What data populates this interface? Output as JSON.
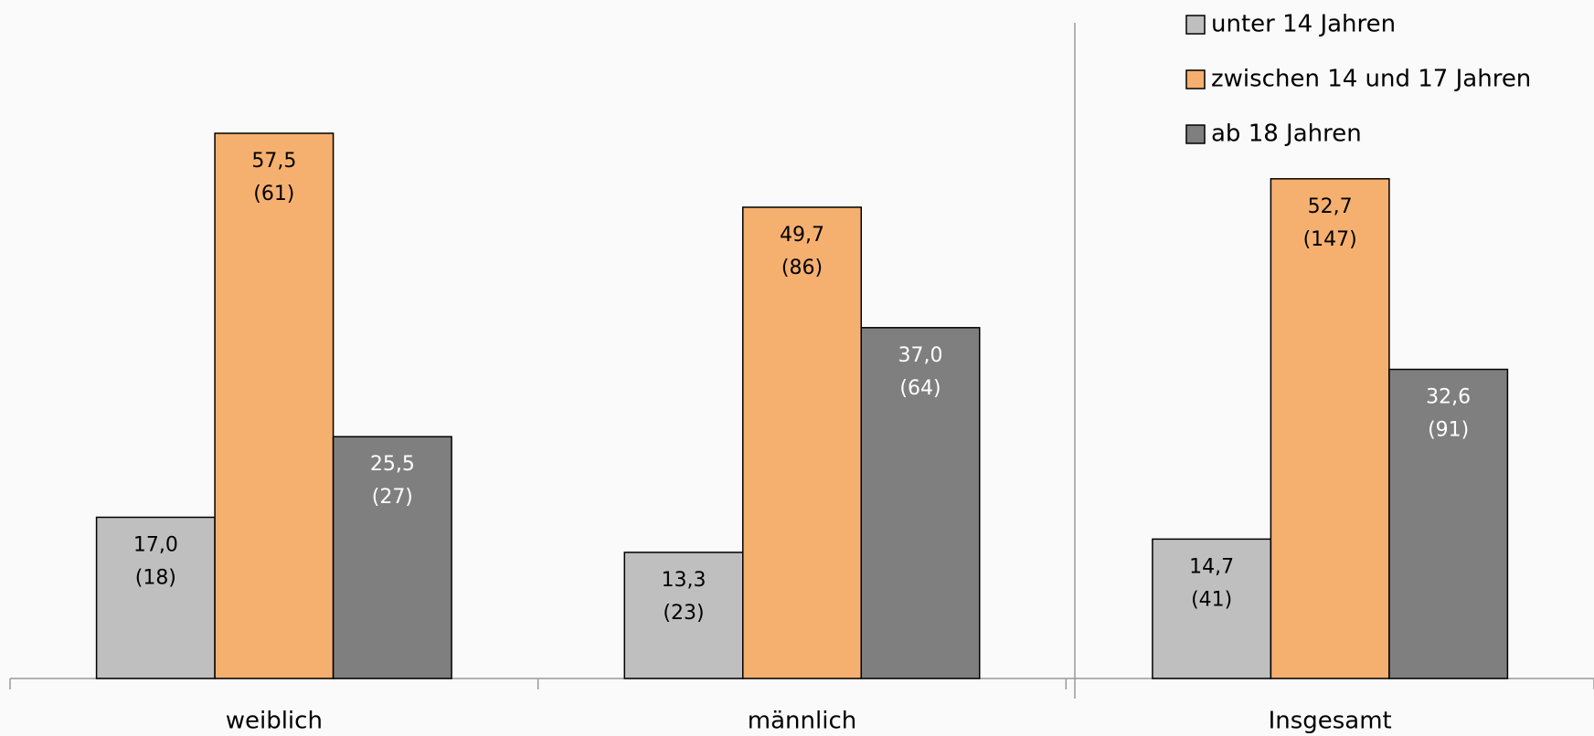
{
  "chart_data": {
    "type": "bar",
    "categories": [
      "weiblich",
      "männlich",
      "Insgesamt"
    ],
    "ylim": [
      0,
      60
    ],
    "legend": "top-right",
    "series": [
      {
        "name": "unter 14 Jahren",
        "color": "#bfbfbf",
        "label_color": "#000000",
        "values": [
          17.0,
          13.3,
          14.7
        ],
        "value_labels": [
          "17,0",
          "13,3",
          "14,7"
        ],
        "count_labels": [
          "(18)",
          "(23)",
          "(41)"
        ]
      },
      {
        "name": "zwischen 14 und 17 Jahren",
        "color": "#f5b06f",
        "label_color": "#000000",
        "values": [
          57.5,
          49.7,
          52.7
        ],
        "value_labels": [
          "57,5",
          "49,7",
          "52,7"
        ],
        "count_labels": [
          "(61)",
          "(86)",
          "(147)"
        ]
      },
      {
        "name": "ab 18 Jahren",
        "color": "#7f7f7f",
        "label_color": "#ffffff",
        "values": [
          25.5,
          37.0,
          32.6
        ],
        "value_labels": [
          "25,5",
          "37,0",
          "32,6"
        ],
        "count_labels": [
          "(27)",
          "(64)",
          "(91)"
        ]
      }
    ]
  }
}
